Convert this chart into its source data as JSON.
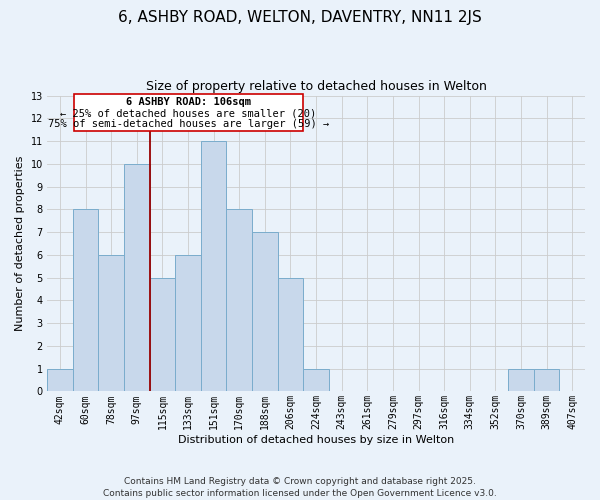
{
  "title": "6, ASHBY ROAD, WELTON, DAVENTRY, NN11 2JS",
  "subtitle": "Size of property relative to detached houses in Welton",
  "xlabel": "Distribution of detached houses by size in Welton",
  "ylabel": "Number of detached properties",
  "bin_labels": [
    "42sqm",
    "60sqm",
    "78sqm",
    "97sqm",
    "115sqm",
    "133sqm",
    "151sqm",
    "170sqm",
    "188sqm",
    "206sqm",
    "224sqm",
    "243sqm",
    "261sqm",
    "279sqm",
    "297sqm",
    "316sqm",
    "334sqm",
    "352sqm",
    "370sqm",
    "389sqm",
    "407sqm"
  ],
  "bar_heights": [
    1,
    8,
    6,
    10,
    5,
    6,
    11,
    8,
    7,
    5,
    1,
    0,
    0,
    0,
    0,
    0,
    0,
    0,
    1,
    1,
    0
  ],
  "bar_color": "#c8d8eb",
  "bar_edgecolor": "#7aaccc",
  "bar_linewidth": 0.7,
  "grid_color": "#cccccc",
  "background_color": "#eaf2fa",
  "red_line_x": 3.5,
  "red_line_color": "#990000",
  "annotation_rect_color": "#cc0000",
  "ann_text_line1": "6 ASHBY ROAD: 106sqm",
  "ann_text_line2": "← 25% of detached houses are smaller (20)",
  "ann_text_line3": "75% of semi-detached houses are larger (59) →",
  "ylim": [
    0,
    13
  ],
  "yticks": [
    0,
    1,
    2,
    3,
    4,
    5,
    6,
    7,
    8,
    9,
    10,
    11,
    12,
    13
  ],
  "footnote": "Contains HM Land Registry data © Crown copyright and database right 2025.\nContains public sector information licensed under the Open Government Licence v3.0.",
  "title_fontsize": 11,
  "subtitle_fontsize": 9,
  "axis_label_fontsize": 8,
  "tick_fontsize": 7,
  "annotation_fontsize": 7.5,
  "footnote_fontsize": 6.5
}
